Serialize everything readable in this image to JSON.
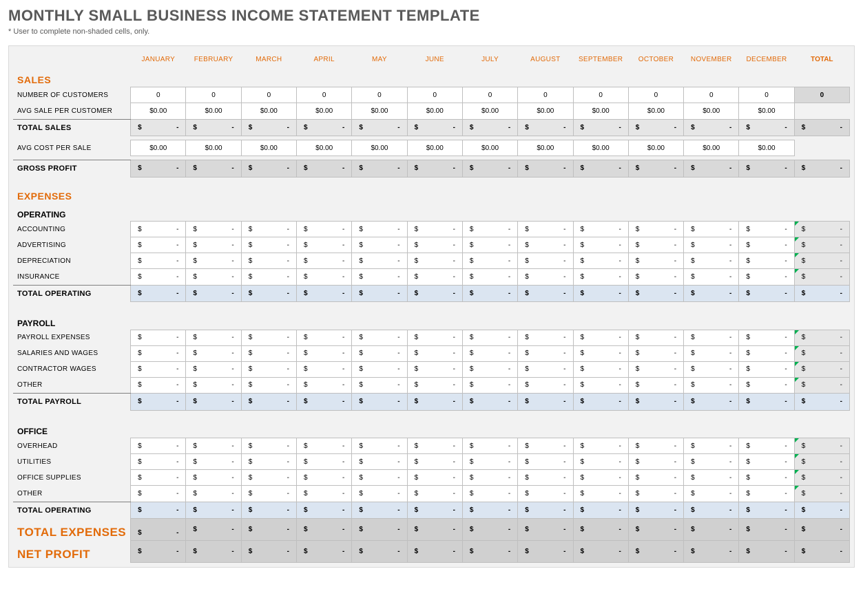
{
  "title": "MONTHLY SMALL BUSINESS INCOME STATEMENT TEMPLATE",
  "subtitle": "* User to complete non-shaded cells, only.",
  "months": [
    "JANUARY",
    "FEBRUARY",
    "MARCH",
    "APRIL",
    "MAY",
    "JUNE",
    "JULY",
    "AUGUST",
    "SEPTEMBER",
    "OCTOBER",
    "NOVEMBER",
    "DECEMBER"
  ],
  "total_label": "TOTAL",
  "zero_int": "0",
  "zero_money": "$0.00",
  "sym": "$",
  "dash": "-",
  "sections": {
    "sales": {
      "title": "SALES",
      "rows": {
        "num_customers": "NUMBER OF CUSTOMERS",
        "avg_sale": "AVG SALE PER CUSTOMER",
        "total_sales": "TOTAL SALES",
        "avg_cost": "AVG COST PER SALE",
        "gross_profit": "GROSS PROFIT"
      }
    },
    "expenses": {
      "title": "EXPENSES",
      "operating": {
        "title": "OPERATING",
        "rows": [
          "ACCOUNTING",
          "ADVERTISING",
          "DEPRECIATION",
          "INSURANCE"
        ],
        "total": "TOTAL OPERATING"
      },
      "payroll": {
        "title": "PAYROLL",
        "rows": [
          "PAYROLL EXPENSES",
          "SALARIES AND WAGES",
          "CONTRACTOR WAGES",
          "OTHER"
        ],
        "total": "TOTAL PAYROLL"
      },
      "office": {
        "title": "OFFICE",
        "rows": [
          "OVERHEAD",
          "UTILITIES",
          "OFFICE SUPPLIES",
          "OTHER"
        ],
        "total": "TOTAL OPERATING"
      }
    },
    "total_expenses": "TOTAL EXPENSES",
    "net_profit": "NET PROFIT"
  },
  "colors": {
    "accent": "#e26b0a",
    "page_bg": "#f2f2f2",
    "border": "#bfbfbf",
    "shaded_light": "#d9d9d9",
    "shaded_blue": "#dbe5f1",
    "shaded_gray": "#e6e6e6",
    "title_gray": "#595959"
  }
}
